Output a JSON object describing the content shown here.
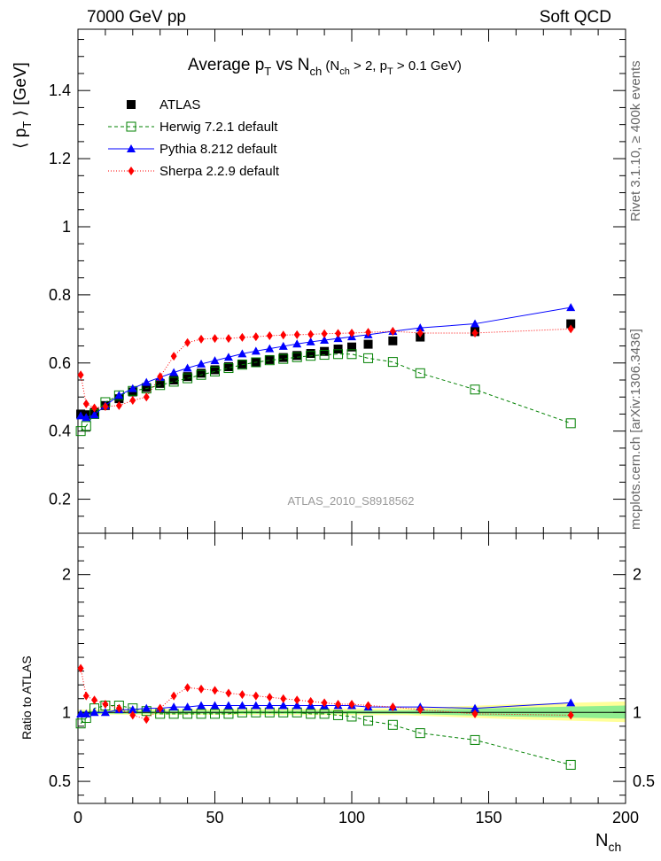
{
  "header": {
    "left": "7000 GeV pp",
    "right": "Soft QCD"
  },
  "side_text": {
    "top": "Rivet 3.1.10, ≥ 400k events",
    "bottom": "mcplots.cern.ch [arXiv:1306.3436]"
  },
  "watermark": "ATLAS_2010_S8918562",
  "chart_data": [
    {
      "type": "scatter",
      "title": "Average p_T vs N_ch (N_ch > 2, p_T > 0.1 GeV)",
      "title_main": "Average p",
      "title_sub1": "T",
      "title_mid": " vs N",
      "title_sub2": "ch",
      "title_paren": " (N",
      "title_sub3": "ch",
      "title_paren2": " > 2, p",
      "title_sub4": "T",
      "title_paren3": " > 0.1 GeV)",
      "ylabel": "⟨ p_T ⟩ [GeV]",
      "ylabel_a": "⟨ p",
      "ylabel_sub": "T",
      "ylabel_b": " ⟩ [GeV]",
      "xlabel": "",
      "xlim": [
        0,
        200
      ],
      "ylim": [
        0.1,
        1.58
      ],
      "yticks": [
        "0.2",
        "0.4",
        "0.6",
        "0.8",
        "1",
        "1.2",
        "1.4"
      ],
      "ytick_values": [
        0.2,
        0.4,
        0.6,
        0.8,
        1.0,
        1.2,
        1.4
      ],
      "legend_position": "top-left",
      "series": [
        {
          "name": "ATLAS",
          "color": "#000000",
          "marker": "square-filled",
          "x": [
            1,
            3,
            6,
            10,
            15,
            20,
            25,
            30,
            35,
            40,
            45,
            50,
            55,
            60,
            65,
            70,
            75,
            80,
            85,
            90,
            95,
            100,
            106,
            115,
            125,
            145,
            180
          ],
          "y": [
            0.45,
            0.448,
            0.455,
            0.475,
            0.495,
            0.515,
            0.528,
            0.54,
            0.55,
            0.56,
            0.57,
            0.58,
            0.589,
            0.597,
            0.603,
            0.61,
            0.616,
            0.622,
            0.628,
            0.634,
            0.641,
            0.647,
            0.655,
            0.665,
            0.676,
            0.692,
            0.715
          ]
        },
        {
          "name": "Herwig 7.2.1 default",
          "color": "#008000",
          "marker": "square-open",
          "line": "dashed",
          "x": [
            1,
            3,
            6,
            10,
            15,
            20,
            25,
            30,
            35,
            40,
            45,
            50,
            55,
            60,
            65,
            70,
            75,
            80,
            85,
            90,
            95,
            100,
            106,
            115,
            125,
            145,
            180
          ],
          "y": [
            0.4,
            0.415,
            0.45,
            0.485,
            0.505,
            0.518,
            0.525,
            0.535,
            0.545,
            0.555,
            0.565,
            0.575,
            0.585,
            0.595,
            0.602,
            0.608,
            0.612,
            0.617,
            0.621,
            0.624,
            0.626,
            0.626,
            0.614,
            0.603,
            0.57,
            0.522,
            0.423
          ]
        },
        {
          "name": "Pythia 8.212 default",
          "color": "#0000ff",
          "marker": "triangle-filled",
          "line": "solid",
          "x": [
            1,
            3,
            6,
            10,
            15,
            20,
            25,
            30,
            35,
            40,
            45,
            50,
            55,
            60,
            65,
            70,
            75,
            80,
            85,
            90,
            95,
            100,
            106,
            115,
            125,
            145,
            180
          ],
          "y": [
            0.445,
            0.44,
            0.448,
            0.475,
            0.505,
            0.525,
            0.543,
            0.558,
            0.572,
            0.585,
            0.597,
            0.607,
            0.617,
            0.627,
            0.635,
            0.642,
            0.649,
            0.656,
            0.662,
            0.667,
            0.672,
            0.677,
            0.683,
            0.693,
            0.703,
            0.715,
            0.763
          ]
        },
        {
          "name": "Sherpa 2.2.9 default",
          "color": "#ff0000",
          "marker": "diamond-filled",
          "line": "dotted",
          "x": [
            1,
            3,
            6,
            10,
            15,
            20,
            25,
            30,
            35,
            40,
            45,
            50,
            55,
            60,
            65,
            70,
            75,
            80,
            85,
            90,
            95,
            100,
            106,
            115,
            125,
            145,
            180
          ],
          "y": [
            0.565,
            0.48,
            0.468,
            0.472,
            0.475,
            0.49,
            0.5,
            0.56,
            0.62,
            0.66,
            0.67,
            0.672,
            0.672,
            0.675,
            0.677,
            0.68,
            0.682,
            0.683,
            0.684,
            0.686,
            0.687,
            0.688,
            0.69,
            0.693,
            0.688,
            0.688,
            0.7
          ]
        }
      ]
    },
    {
      "type": "scatter",
      "title": "",
      "ylabel": "Ratio to ATLAS",
      "xlabel": "N_ch",
      "xlabel_a": "N",
      "xlabel_sub": "ch",
      "xlim": [
        0,
        200
      ],
      "ylim": [
        0.34,
        2.3
      ],
      "yticks": [
        "0.5",
        "1",
        "2"
      ],
      "ytick_values": [
        0.5,
        1.0,
        2.0
      ],
      "xticks": [
        "0",
        "50",
        "100",
        "150",
        "200"
      ],
      "xtick_values": [
        0,
        50,
        100,
        150,
        200
      ],
      "reference_band": {
        "color_inner": "#90ee90",
        "color_outer": "#ffff99"
      },
      "series": [
        {
          "name": "Herwig 7.2.1 default",
          "color": "#008000",
          "marker": "square-open",
          "line": "dashed",
          "x": [
            1,
            3,
            6,
            10,
            15,
            20,
            25,
            30,
            35,
            40,
            45,
            50,
            55,
            60,
            65,
            70,
            75,
            80,
            85,
            90,
            95,
            100,
            106,
            115,
            125,
            145,
            180
          ],
          "y": [
            0.92,
            0.96,
            1.03,
            1.05,
            1.05,
            1.03,
            1.01,
            0.99,
            0.99,
            0.99,
            0.99,
            0.99,
            0.99,
            1.0,
            1.0,
            1.0,
            1.0,
            1.0,
            0.99,
            0.99,
            0.98,
            0.97,
            0.94,
            0.91,
            0.85,
            0.8,
            0.62
          ]
        },
        {
          "name": "Pythia 8.212 default",
          "color": "#0000ff",
          "marker": "triangle-filled",
          "line": "solid",
          "x": [
            1,
            3,
            6,
            10,
            15,
            20,
            25,
            30,
            35,
            40,
            45,
            50,
            55,
            60,
            65,
            70,
            75,
            80,
            85,
            90,
            95,
            100,
            106,
            115,
            125,
            145,
            180
          ],
          "y": [
            0.99,
            0.99,
            1.0,
            1.0,
            1.02,
            1.02,
            1.03,
            1.03,
            1.04,
            1.04,
            1.05,
            1.05,
            1.05,
            1.05,
            1.05,
            1.05,
            1.05,
            1.05,
            1.05,
            1.05,
            1.05,
            1.05,
            1.04,
            1.04,
            1.04,
            1.03,
            1.07
          ]
        },
        {
          "name": "Sherpa 2.2.9 default",
          "color": "#ff0000",
          "marker": "diamond-filled",
          "line": "dotted",
          "x": [
            1,
            3,
            6,
            10,
            15,
            20,
            25,
            30,
            35,
            40,
            45,
            50,
            55,
            60,
            65,
            70,
            75,
            80,
            85,
            90,
            95,
            100,
            106,
            115,
            125,
            145,
            180
          ],
          "y": [
            1.32,
            1.12,
            1.09,
            1.06,
            1.03,
            0.98,
            0.95,
            1.03,
            1.12,
            1.18,
            1.17,
            1.16,
            1.14,
            1.13,
            1.12,
            1.11,
            1.1,
            1.09,
            1.08,
            1.07,
            1.06,
            1.06,
            1.05,
            1.04,
            1.02,
            0.99,
            0.98
          ]
        }
      ]
    }
  ]
}
